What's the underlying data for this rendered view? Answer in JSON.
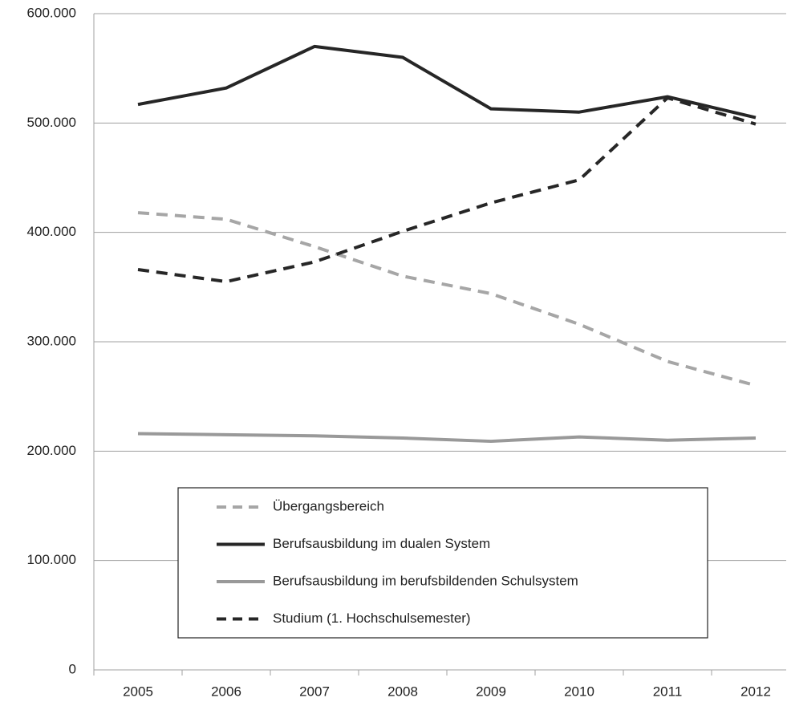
{
  "chart_data": {
    "type": "line",
    "categories": [
      "2005",
      "2006",
      "2007",
      "2008",
      "2009",
      "2010",
      "2011",
      "2012"
    ],
    "series": [
      {
        "name": "Übergangsbereich",
        "color": "#a6a6a6",
        "line_style": "dashed",
        "values": [
          418000,
          412000,
          387000,
          360000,
          344000,
          316000,
          282000,
          260000
        ]
      },
      {
        "name": "Berufsausbildung im dualen System",
        "color": "#262626",
        "line_style": "solid",
        "values": [
          517000,
          532000,
          570000,
          560000,
          513000,
          510000,
          524000,
          505000
        ]
      },
      {
        "name": "Berufsausbildung im berufsbildenden Schulsystem",
        "color": "#999999",
        "line_style": "solid",
        "values": [
          216000,
          215000,
          214000,
          212000,
          209000,
          213000,
          210000,
          212000
        ]
      },
      {
        "name": "Studium (1. Hochschulsemester)",
        "color": "#262626",
        "line_style": "dashed",
        "values": [
          366000,
          355000,
          373000,
          401000,
          427000,
          448000,
          523000,
          499000
        ]
      }
    ],
    "ylim": [
      0,
      600000
    ],
    "yticks": [
      0,
      {
        "value": 100000,
        "label": "100.000"
      },
      {
        "value": 200000,
        "label": "200.000"
      },
      {
        "value": 300000,
        "label": "300.000"
      },
      {
        "value": 400000,
        "label": "400.000"
      },
      {
        "value": 500000,
        "label": "500.000"
      },
      {
        "value": 600000,
        "label": "600.000"
      }
    ],
    "grid": true
  }
}
